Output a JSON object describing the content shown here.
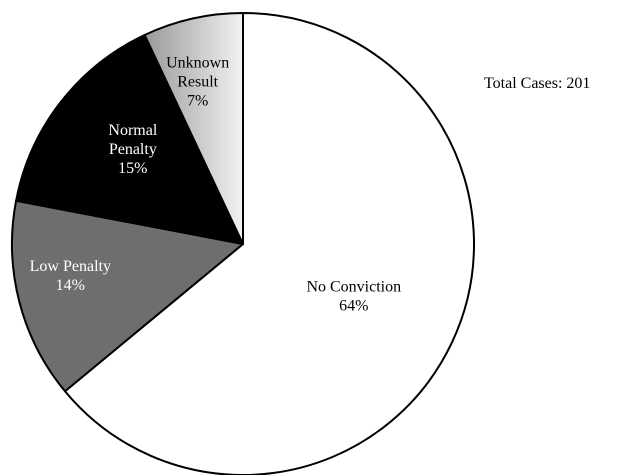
{
  "chart_data": {
    "type": "pie",
    "title": "",
    "start": "12 o'clock, clockwise",
    "slices": [
      {
        "label": [
          "No Conviction",
          "64%"
        ],
        "value": 64,
        "color": "#ffffff",
        "text_color": "#000000"
      },
      {
        "label": [
          "Low Penalty",
          "14%"
        ],
        "value": 14,
        "color": "#6e6e6e",
        "text_color": "#ffffff"
      },
      {
        "label": [
          "Normal",
          "Penalty",
          "15%"
        ],
        "value": 15,
        "color": "#000000",
        "text_color": "#ffffff"
      },
      {
        "label": [
          "Unknown",
          "Result",
          "7%"
        ],
        "value": 7,
        "color": "gradient: #9a9a9a to #f2f2f2 (left to right)",
        "text_color": "#000000"
      }
    ],
    "annotation": "Total Cases: 201"
  }
}
